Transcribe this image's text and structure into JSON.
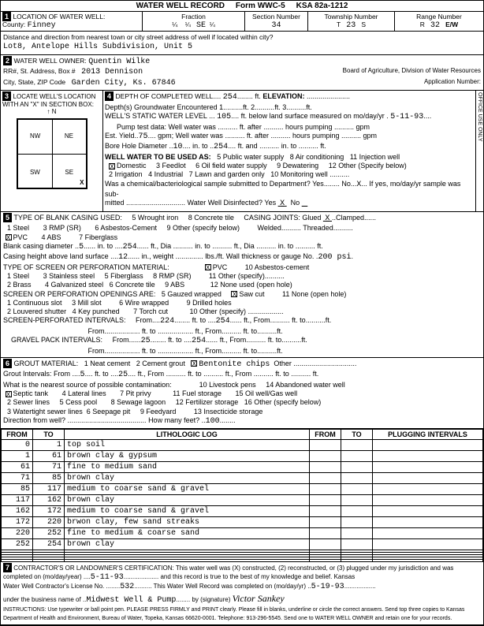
{
  "header": {
    "title": "WATER WELL RECORD",
    "form": "Form WWC-5",
    "ksa": "KSA 82a-1212"
  },
  "loc": {
    "label1": "LOCATION OF WATER WELL:",
    "county_label": "County:",
    "county": "Finney",
    "fraction_label": "Fraction",
    "q1": "¼",
    "q2": "¼",
    "q3": "SE",
    "q4": "¼",
    "section_label": "Section Number",
    "section": "34",
    "township_label": "Township Number",
    "township_t": "T",
    "township": "23",
    "township_s": "S",
    "range_label": "Range Number",
    "range_r": "R",
    "range": "32",
    "range_ew": "E/W",
    "dist_label": "Distance and direction from nearest town or city street address of well if located within city?",
    "dist": "Lot8, Antelope Hills Subdivision, Unit 5"
  },
  "owner": {
    "label": "WATER WELL OWNER:",
    "name": "Quentin Wilke",
    "rr_label": "RR#, St. Address, Box #",
    "rr": "2013 Dennison",
    "city_label": "City, State, ZIP Code",
    "city": "Garden City, Ks.  67846",
    "board": "Board of Agriculture, Division of Water Resources",
    "app_label": "Application Number:"
  },
  "sec3": {
    "label": "LOCATE WELL'S LOCATION WITH AN \"X\" IN SECTION BOX:",
    "n": "N",
    "s": "S",
    "e": "E",
    "w": "W",
    "nw": "NW",
    "ne": "NE",
    "sw": "SW",
    "se": "SE",
    "mile": "1 Mile"
  },
  "sec4": {
    "label": "DEPTH OF COMPLETED WELL",
    "depth": "254",
    "ft": "ft.",
    "elev": "ELEVATION:",
    "gw_label": "Depth(s) Groundwater Encountered",
    "gw1": "1",
    "gw2": "ft.",
    "gw3": "2",
    "gw4": "ft.",
    "gw5": "3",
    "gw6": "ft.",
    "static_label": "WELL'S STATIC WATER LEVEL",
    "static": "105",
    "static_after": "ft. below land surface measured on mo/day/yr",
    "static_date": "5-11-93",
    "pump_label": "Pump test data:  Well water was",
    "pump_after": "ft. after",
    "pump_hours": "hours pumping",
    "gpm": "gpm",
    "est_label": "Est. Yield",
    "est": "75",
    "est_gpm": "gpm;  Well water was",
    "bore_label": "Bore Hole Diameter",
    "bore": "10",
    "bore_in": "in. to",
    "bore2": "254",
    "bore_ft": "ft. and",
    "bore_in2": "in. to",
    "bore_ft2": "ft.",
    "use_label": "WELL WATER TO BE USED AS:",
    "u1": "Domestic",
    "u2": "3 Feedlot",
    "u3": "5 Public water supply",
    "u4": "8 Air conditioning",
    "u5": "11 Injection well",
    "u6": "2 Irrigation",
    "u7": "4 Industrial",
    "u8": "6 Oil field water supply",
    "u9": "9 Dewatering",
    "u10": "12 Other (Specify below)",
    "u11": "7 Lawn and garden only",
    "u12": "10 Monitoring well",
    "chem_label": "Was a chemical/bacteriological sample submitted to Department? Yes",
    "chem_no": "No",
    "chem_x": "X",
    "chem_after": "If yes, mo/day/yr sample was sub-",
    "mitted": "mitted",
    "disinfect": "Water Well Disinfected?  Yes",
    "dx": "X",
    "dno": "No"
  },
  "sec5": {
    "label": "TYPE OF BLANK CASING USED:",
    "c1": "1 Steel",
    "c2": "3 RMP (SR)",
    "c3": "5 Wrought iron",
    "c4": "8 Concrete tile",
    "joints": "CASING JOINTS: Glued",
    "jx": "X",
    "clamped": "Clamped",
    "c5": "PVC",
    "c5x": "X",
    "c6": "4 ABS",
    "c7": "6 Asbestos-Cement",
    "c8": "9 Other (specify below)",
    "welded": "Welded",
    "threaded": "Threaded",
    "c9": "7 Fiberglass",
    "diam_label": "Blank casing diameter",
    "diam": "5",
    "diam_in": "in. to",
    "diam2": "254",
    "diam_ft": "ft., Dia",
    "diam_to": "in. to",
    "diam_ft2": "ft., Dia",
    "diam_in3": "in. to",
    "diam_ft3": "ft.",
    "height_label": "Casing height above land surface",
    "height": "12",
    "height_in": "in., weight",
    "height_lbs": "lbs./ft.  Wall thickness or gauge No.",
    "gauge": "200 psi",
    "perf_label": "TYPE OF SCREEN OR PERFORATION MATERIAL:",
    "p1": "1 Steel",
    "p2": "3 Stainless steel",
    "p3": "5 Fiberglass",
    "p4": "8 RMP (SR)",
    "p_pvc": "PVC",
    "p_pvcx": "X",
    "p5": "10 Asbestos-cement",
    "p6": "11 Other (specify)",
    "p7": "2 Brass",
    "p8": "4 Galvanized steel",
    "p9": "6 Concrete tile",
    "p10": "9 ABS",
    "p11": "12 None used (open hole)",
    "open_label": "SCREEN OR PERFORATION OPENINGS ARE:",
    "o1": "1 Continuous slot",
    "o2": "3 Mill slot",
    "o3": "5 Gauzed wrapped",
    "o4": "Saw cut",
    "o4x": "X",
    "o5": "11 None (open hole)",
    "o6": "2 Louvered shutter",
    "o7": "4 Key punched",
    "o8": "6 Wire wrapped",
    "o9": "9 Drilled holes",
    "o10": "7 Torch cut",
    "o11": "10 Other (specify)",
    "sp_label": "SCREEN-PERFORATED INTERVALS:",
    "from": "From",
    "to": "ft. to",
    "ftf": "ft., From",
    "ftt": "ft. to",
    "ft": "ft.",
    "sp1": "224",
    "sp2": "254",
    "gp_label": "GRAVEL PACK INTERVALS:",
    "gp1": "25",
    "gp2": "254"
  },
  "sec6": {
    "label": "GROUT MATERIAL:",
    "g1": "1 Neat cement",
    "g2": "2 Cement grout",
    "g3": "Bentonite chips",
    "g3x": "X",
    "g4": "Other",
    "gi_label": "Grout Intervals:    From",
    "gi1": "5",
    "gi_to": "ft. to",
    "gi2": "25",
    "gi_ft": "ft.,  From",
    "gi_ft2": "ft. to",
    "gi_ft3": "ft., From",
    "gi_ft4": "ft. to",
    "gi_ft5": "ft.",
    "contam_label": "What is the nearest source of possible contamination:",
    "n1": "Septic tank",
    "n1x": "X",
    "n2": "4 Lateral lines",
    "n3": "7 Pit privy",
    "n4": "10 Livestock pens",
    "n5": "14 Abandoned water well",
    "n6": "2 Sewer lines",
    "n7": "5 Cess pool",
    "n8": "8 Sewage lagoon",
    "n9": "11 Fuel storage",
    "n10": "15 Oil well/Gas well",
    "n11": "3 Watertight sewer lines",
    "n12": "6 Seepage pit",
    "n13": "9 Feedyard",
    "n14": "12 Fertilizer storage",
    "n15": "16 Other (specify below)",
    "n16": "13 Insecticide storage",
    "dir_label": "Direction from well?",
    "feet_label": "How many feet?",
    "feet": "100"
  },
  "log": {
    "h_from": "FROM",
    "h_to": "TO",
    "h_lith": "LITHOLOGIC LOG",
    "h_from2": "FROM",
    "h_to2": "TO",
    "h_plug": "PLUGGING INTERVALS",
    "rows": [
      {
        "from": "0",
        "to": "1",
        "lith": "top soil"
      },
      {
        "from": "1",
        "to": "61",
        "lith": "brown clay & gypsum"
      },
      {
        "from": "61",
        "to": "71",
        "lith": "fine to medium sand"
      },
      {
        "from": "71",
        "to": "85",
        "lith": "brown clay"
      },
      {
        "from": "85",
        "to": "117",
        "lith": "medium to coarse sand & gravel"
      },
      {
        "from": "117",
        "to": "162",
        "lith": "brown clay"
      },
      {
        "from": "162",
        "to": "172",
        "lith": "medium to coarse sand & gravel"
      },
      {
        "from": "172",
        "to": "220",
        "lith": "brwon clay, few sand streaks"
      },
      {
        "from": "220",
        "to": "252",
        "lith": "fine to medium & coarse sand"
      },
      {
        "from": "252",
        "to": "254",
        "lith": "brown clay"
      },
      {
        "from": "",
        "to": "",
        "lith": ""
      },
      {
        "from": "",
        "to": "",
        "lith": ""
      },
      {
        "from": "",
        "to": "",
        "lith": ""
      },
      {
        "from": "",
        "to": "",
        "lith": ""
      },
      {
        "from": "",
        "to": "",
        "lith": ""
      }
    ]
  },
  "sec7": {
    "label": "CONTRACTOR'S OR LANDOWNER'S CERTIFICATION: This water well was (X) constructed, (2) reconstructed, or (3) plugged under my jurisdiction and was",
    "completed": "completed on (mo/day/year)",
    "date1": "5-11-93",
    "belief": "and this record is true to the best of my knowledge and belief. Kansas",
    "lic_label": "Water Well Contractor's License No.",
    "lic": "532",
    "rec_label": "This Water Well Record was completed on (mo/day/yr)",
    "date2": "5-19-93",
    "bus_label": "under the business name of",
    "bus": "Midwest Well & Pump",
    "sig_label": "by (signature)",
    "instr": "INSTRUCTIONS: Use typewriter or ball point pen. PLEASE PRESS FIRMLY and PRINT clearly. Please fill in blanks, underline or circle the correct answers. Send top three copies to Kansas Department of Health and Environment, Bureau of Water, Topeka, Kansas 66620-0001. Telephone: 913-296-5545. Send one to WATER WELL OWNER and retain one for your records."
  }
}
